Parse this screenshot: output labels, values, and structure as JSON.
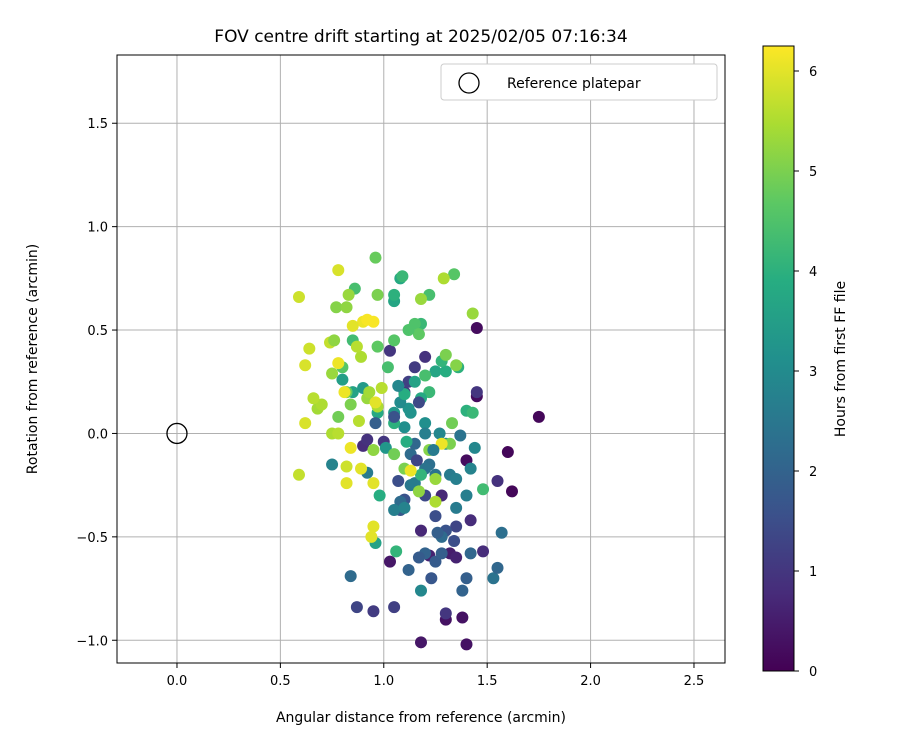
{
  "chart_data": {
    "type": "scatter",
    "title": "FOV centre drift starting at 2025/02/05 07:16:34",
    "xlabel": "Angular distance from reference (arcmin)",
    "ylabel": "Rotation from reference (arcmin)",
    "xlim": [
      -0.29,
      2.65
    ],
    "ylim": [
      -1.11,
      1.83
    ],
    "xticks": [
      0.0,
      0.5,
      1.0,
      1.5,
      2.0,
      2.5
    ],
    "xtick_labels": [
      "0.0",
      "0.5",
      "1.0",
      "1.5",
      "2.0",
      "2.5"
    ],
    "yticks": [
      -1.0,
      -0.5,
      0.0,
      0.5,
      1.0,
      1.5
    ],
    "ytick_labels": [
      "−1.0",
      "−0.5",
      "0.0",
      "0.5",
      "1.0",
      "1.5"
    ],
    "grid": true,
    "legend": {
      "position": "top-right",
      "entries": [
        {
          "label": "Reference platepar",
          "marker": "open-circle"
        }
      ]
    },
    "reference_point": {
      "x": 0.0,
      "y": 0.0,
      "label": "Reference platepar"
    },
    "colorbar": {
      "label": "Hours from first FF file",
      "colormap": "viridis",
      "range": [
        0,
        6.25
      ],
      "ticks": [
        0,
        1,
        2,
        3,
        4,
        5,
        6
      ],
      "tick_labels": [
        "0",
        "1",
        "2",
        "3",
        "4",
        "5",
        "6"
      ]
    },
    "series": [
      {
        "c_unit": "hours",
        "points": [
          {
            "x": 1.75,
            "y": 0.08,
            "c": 0.1
          },
          {
            "x": 1.62,
            "y": -0.28,
            "c": 0.1
          },
          {
            "x": 1.6,
            "y": -0.09,
            "c": 0.1
          },
          {
            "x": 1.45,
            "y": 0.51,
            "c": 0.2
          },
          {
            "x": 1.45,
            "y": 0.18,
            "c": 0.2
          },
          {
            "x": 1.4,
            "y": -0.13,
            "c": 0.2
          },
          {
            "x": 1.38,
            "y": -0.89,
            "c": 0.3
          },
          {
            "x": 1.4,
            "y": -1.02,
            "c": 0.3
          },
          {
            "x": 1.3,
            "y": -0.9,
            "c": 0.3
          },
          {
            "x": 1.18,
            "y": -1.01,
            "c": 0.4
          },
          {
            "x": 1.03,
            "y": -0.62,
            "c": 0.4
          },
          {
            "x": 1.32,
            "y": -0.58,
            "c": 0.5
          },
          {
            "x": 1.35,
            "y": -0.6,
            "c": 0.6
          },
          {
            "x": 1.22,
            "y": -0.59,
            "c": 0.6
          },
          {
            "x": 1.18,
            "y": -0.47,
            "c": 0.7
          },
          {
            "x": 1.28,
            "y": -0.3,
            "c": 0.7
          },
          {
            "x": 1.42,
            "y": -0.42,
            "c": 0.8
          },
          {
            "x": 1.48,
            "y": -0.57,
            "c": 0.8
          },
          {
            "x": 1.55,
            "y": -0.23,
            "c": 0.9
          },
          {
            "x": 1.45,
            "y": 0.2,
            "c": 1.0
          },
          {
            "x": 1.3,
            "y": -0.87,
            "c": 1.0
          },
          {
            "x": 0.95,
            "y": -0.86,
            "c": 1.1
          },
          {
            "x": 1.05,
            "y": -0.84,
            "c": 1.2
          },
          {
            "x": 0.87,
            "y": -0.84,
            "c": 1.3
          },
          {
            "x": 1.2,
            "y": 0.37,
            "c": 0.9
          },
          {
            "x": 1.1,
            "y": 0.2,
            "c": 1.0
          },
          {
            "x": 1.12,
            "y": 0.25,
            "c": 1.2
          },
          {
            "x": 1.03,
            "y": 0.4,
            "c": 1.0
          },
          {
            "x": 1.15,
            "y": 0.32,
            "c": 1.1
          },
          {
            "x": 1.0,
            "y": -0.04,
            "c": 1.0
          },
          {
            "x": 0.9,
            "y": -0.06,
            "c": 0.8
          },
          {
            "x": 0.92,
            "y": -0.03,
            "c": 0.9
          },
          {
            "x": 1.25,
            "y": -0.4,
            "c": 1.5
          },
          {
            "x": 1.2,
            "y": -0.3,
            "c": 1.4
          },
          {
            "x": 1.1,
            "y": -0.32,
            "c": 1.6
          },
          {
            "x": 1.08,
            "y": -0.37,
            "c": 1.7
          },
          {
            "x": 1.35,
            "y": -0.45,
            "c": 1.3
          },
          {
            "x": 1.34,
            "y": -0.52,
            "c": 1.5
          },
          {
            "x": 1.3,
            "y": -0.47,
            "c": 1.6
          },
          {
            "x": 1.25,
            "y": -0.62,
            "c": 1.8
          },
          {
            "x": 1.28,
            "y": -0.58,
            "c": 1.9
          },
          {
            "x": 1.2,
            "y": -0.58,
            "c": 2.0
          },
          {
            "x": 1.12,
            "y": -0.66,
            "c": 2.0
          },
          {
            "x": 1.17,
            "y": -0.6,
            "c": 1.8
          },
          {
            "x": 1.23,
            "y": -0.7,
            "c": 1.7
          },
          {
            "x": 1.4,
            "y": -0.7,
            "c": 1.9
          },
          {
            "x": 1.38,
            "y": -0.76,
            "c": 2.0
          },
          {
            "x": 1.53,
            "y": -0.7,
            "c": 2.4
          },
          {
            "x": 1.55,
            "y": -0.65,
            "c": 2.1
          },
          {
            "x": 1.57,
            "y": -0.48,
            "c": 2.3
          },
          {
            "x": 1.42,
            "y": -0.58,
            "c": 2.1
          },
          {
            "x": 0.84,
            "y": -0.69,
            "c": 2.2
          },
          {
            "x": 1.18,
            "y": -0.76,
            "c": 2.9
          },
          {
            "x": 1.08,
            "y": -0.33,
            "c": 2.2
          },
          {
            "x": 1.13,
            "y": -0.1,
            "c": 2.2
          },
          {
            "x": 1.15,
            "y": -0.05,
            "c": 2.1
          },
          {
            "x": 1.22,
            "y": -0.15,
            "c": 2.3
          },
          {
            "x": 1.25,
            "y": -0.2,
            "c": 2.4
          },
          {
            "x": 1.32,
            "y": -0.2,
            "c": 2.6
          },
          {
            "x": 1.4,
            "y": -0.3,
            "c": 2.7
          },
          {
            "x": 1.35,
            "y": -0.36,
            "c": 2.6
          },
          {
            "x": 1.42,
            "y": -0.17,
            "c": 2.8
          },
          {
            "x": 1.44,
            "y": -0.07,
            "c": 2.9
          },
          {
            "x": 1.3,
            "y": -0.05,
            "c": 3.0
          },
          {
            "x": 1.27,
            "y": 0.0,
            "c": 2.9
          },
          {
            "x": 1.2,
            "y": 0.05,
            "c": 3.1
          },
          {
            "x": 1.12,
            "y": 0.12,
            "c": 3.2
          },
          {
            "x": 1.05,
            "y": 0.1,
            "c": 3.3
          },
          {
            "x": 1.08,
            "y": 0.15,
            "c": 3.0
          },
          {
            "x": 1.1,
            "y": 0.03,
            "c": 3.1
          },
          {
            "x": 1.13,
            "y": -0.25,
            "c": 2.5
          },
          {
            "x": 1.05,
            "y": -0.37,
            "c": 2.7
          },
          {
            "x": 1.1,
            "y": -0.36,
            "c": 2.8
          },
          {
            "x": 1.2,
            "y": -0.17,
            "c": 2.4
          },
          {
            "x": 1.15,
            "y": -0.24,
            "c": 2.6
          },
          {
            "x": 0.75,
            "y": -0.15,
            "c": 2.8
          },
          {
            "x": 0.92,
            "y": -0.19,
            "c": 2.6
          },
          {
            "x": 1.01,
            "y": -0.07,
            "c": 3.3
          },
          {
            "x": 0.8,
            "y": 0.26,
            "c": 3.5
          },
          {
            "x": 0.85,
            "y": 0.2,
            "c": 3.6
          },
          {
            "x": 0.97,
            "y": 0.1,
            "c": 3.8
          },
          {
            "x": 0.9,
            "y": 0.22,
            "c": 3.4
          },
          {
            "x": 1.15,
            "y": 0.25,
            "c": 3.6
          },
          {
            "x": 1.25,
            "y": 0.3,
            "c": 3.7
          },
          {
            "x": 1.3,
            "y": 0.3,
            "c": 3.9
          },
          {
            "x": 1.36,
            "y": 0.32,
            "c": 4.0
          },
          {
            "x": 1.28,
            "y": 0.35,
            "c": 4.1
          },
          {
            "x": 1.4,
            "y": 0.11,
            "c": 4.0
          },
          {
            "x": 1.43,
            "y": 0.1,
            "c": 4.2
          },
          {
            "x": 1.48,
            "y": -0.27,
            "c": 4.3
          },
          {
            "x": 1.22,
            "y": 0.2,
            "c": 4.2
          },
          {
            "x": 1.2,
            "y": 0.28,
            "c": 4.4
          },
          {
            "x": 1.18,
            "y": 0.17,
            "c": 3.8
          },
          {
            "x": 1.1,
            "y": 0.19,
            "c": 3.9
          },
          {
            "x": 1.05,
            "y": 0.05,
            "c": 4.0
          },
          {
            "x": 1.11,
            "y": -0.04,
            "c": 3.9
          },
          {
            "x": 1.18,
            "y": -0.2,
            "c": 4.1
          },
          {
            "x": 0.96,
            "y": -0.53,
            "c": 3.6
          },
          {
            "x": 0.98,
            "y": -0.3,
            "c": 3.9
          },
          {
            "x": 1.06,
            "y": -0.57,
            "c": 4.1
          },
          {
            "x": 1.08,
            "y": 0.75,
            "c": 3.8
          },
          {
            "x": 1.09,
            "y": 0.76,
            "c": 4.2
          },
          {
            "x": 1.05,
            "y": 0.64,
            "c": 3.7
          },
          {
            "x": 1.05,
            "y": 0.67,
            "c": 4.0
          },
          {
            "x": 0.86,
            "y": 0.7,
            "c": 4.4
          },
          {
            "x": 1.22,
            "y": 0.67,
            "c": 4.4
          },
          {
            "x": 1.34,
            "y": 0.77,
            "c": 4.6
          },
          {
            "x": 1.18,
            "y": 0.53,
            "c": 4.2
          },
          {
            "x": 1.15,
            "y": 0.53,
            "c": 4.5
          },
          {
            "x": 1.17,
            "y": 0.48,
            "c": 4.7
          },
          {
            "x": 1.12,
            "y": 0.5,
            "c": 4.5
          },
          {
            "x": 1.05,
            "y": 0.45,
            "c": 4.6
          },
          {
            "x": 0.97,
            "y": 0.42,
            "c": 4.7
          },
          {
            "x": 0.85,
            "y": 0.45,
            "c": 4.3
          },
          {
            "x": 0.8,
            "y": 0.32,
            "c": 4.6
          },
          {
            "x": 0.82,
            "y": 0.2,
            "c": 4.8
          },
          {
            "x": 0.78,
            "y": 0.08,
            "c": 4.9
          },
          {
            "x": 0.84,
            "y": 0.14,
            "c": 5.0
          },
          {
            "x": 0.96,
            "y": 0.85,
            "c": 4.8
          },
          {
            "x": 0.97,
            "y": 0.67,
            "c": 5.0
          },
          {
            "x": 0.77,
            "y": 0.61,
            "c": 5.1
          },
          {
            "x": 0.82,
            "y": 0.61,
            "c": 5.2
          },
          {
            "x": 0.83,
            "y": 0.67,
            "c": 5.3
          },
          {
            "x": 1.18,
            "y": 0.65,
            "c": 5.3
          },
          {
            "x": 1.29,
            "y": 0.75,
            "c": 5.5
          },
          {
            "x": 1.43,
            "y": 0.58,
            "c": 5.3
          },
          {
            "x": 1.3,
            "y": 0.38,
            "c": 5.0
          },
          {
            "x": 1.35,
            "y": 0.33,
            "c": 5.1
          },
          {
            "x": 1.33,
            "y": 0.05,
            "c": 4.9
          },
          {
            "x": 1.32,
            "y": -0.05,
            "c": 5.0
          },
          {
            "x": 1.22,
            "y": -0.08,
            "c": 5.1
          },
          {
            "x": 1.25,
            "y": -0.22,
            "c": 5.3
          },
          {
            "x": 1.17,
            "y": -0.28,
            "c": 5.2
          },
          {
            "x": 1.25,
            "y": -0.33,
            "c": 5.5
          },
          {
            "x": 1.05,
            "y": -0.1,
            "c": 4.9
          },
          {
            "x": 1.1,
            "y": -0.17,
            "c": 5.0
          },
          {
            "x": 0.95,
            "y": -0.08,
            "c": 5.2
          },
          {
            "x": 0.92,
            "y": 0.17,
            "c": 5.3
          },
          {
            "x": 0.93,
            "y": 0.2,
            "c": 5.4
          },
          {
            "x": 0.97,
            "y": 0.13,
            "c": 5.5
          },
          {
            "x": 0.99,
            "y": 0.22,
            "c": 5.6
          },
          {
            "x": 0.89,
            "y": 0.37,
            "c": 5.5
          },
          {
            "x": 0.87,
            "y": 0.42,
            "c": 5.6
          },
          {
            "x": 0.74,
            "y": 0.44,
            "c": 5.7
          },
          {
            "x": 0.68,
            "y": 0.12,
            "c": 5.4
          },
          {
            "x": 0.7,
            "y": 0.14,
            "c": 5.5
          },
          {
            "x": 0.66,
            "y": 0.17,
            "c": 5.6
          },
          {
            "x": 0.64,
            "y": 0.41,
            "c": 5.8
          },
          {
            "x": 0.62,
            "y": 0.33,
            "c": 5.9
          },
          {
            "x": 0.59,
            "y": 0.66,
            "c": 5.8
          },
          {
            "x": 0.59,
            "y": -0.2,
            "c": 5.7
          },
          {
            "x": 0.75,
            "y": 0.0,
            "c": 5.5
          },
          {
            "x": 0.78,
            "y": 0.0,
            "c": 5.6
          },
          {
            "x": 0.78,
            "y": 0.79,
            "c": 5.9
          },
          {
            "x": 0.62,
            "y": 0.05,
            "c": 5.9
          },
          {
            "x": 0.82,
            "y": -0.16,
            "c": 5.8
          },
          {
            "x": 0.82,
            "y": -0.24,
            "c": 6.0
          },
          {
            "x": 0.95,
            "y": -0.24,
            "c": 6.0
          },
          {
            "x": 0.95,
            "y": -0.45,
            "c": 6.0
          },
          {
            "x": 0.94,
            "y": -0.5,
            "c": 6.0
          },
          {
            "x": 0.89,
            "y": -0.17,
            "c": 6.0
          },
          {
            "x": 0.84,
            "y": -0.07,
            "c": 6.1
          },
          {
            "x": 0.81,
            "y": 0.2,
            "c": 6.1
          },
          {
            "x": 0.78,
            "y": 0.34,
            "c": 6.1
          },
          {
            "x": 0.9,
            "y": 0.54,
            "c": 6.1
          },
          {
            "x": 0.92,
            "y": 0.55,
            "c": 6.2
          },
          {
            "x": 0.95,
            "y": 0.54,
            "c": 6.2
          },
          {
            "x": 0.85,
            "y": 0.52,
            "c": 6.0
          },
          {
            "x": 0.96,
            "y": 0.15,
            "c": 6.0
          },
          {
            "x": 1.13,
            "y": -0.18,
            "c": 6.1
          },
          {
            "x": 1.28,
            "y": -0.05,
            "c": 6.1
          },
          {
            "x": 0.75,
            "y": 0.29,
            "c": 5.3
          },
          {
            "x": 0.76,
            "y": 0.45,
            "c": 5.2
          },
          {
            "x": 0.88,
            "y": 0.06,
            "c": 5.6
          },
          {
            "x": 1.02,
            "y": 0.32,
            "c": 4.4
          },
          {
            "x": 1.07,
            "y": 0.23,
            "c": 2.9
          },
          {
            "x": 1.13,
            "y": 0.1,
            "c": 3.2
          },
          {
            "x": 1.2,
            "y": 0.0,
            "c": 2.7
          },
          {
            "x": 1.24,
            "y": -0.08,
            "c": 2.6
          },
          {
            "x": 1.37,
            "y": -0.01,
            "c": 2.4
          },
          {
            "x": 1.35,
            "y": -0.22,
            "c": 2.7
          },
          {
            "x": 1.28,
            "y": -0.5,
            "c": 2.2
          },
          {
            "x": 1.26,
            "y": -0.48,
            "c": 1.9
          },
          {
            "x": 1.05,
            "y": 0.08,
            "c": 1.6
          },
          {
            "x": 1.07,
            "y": -0.23,
            "c": 1.5
          },
          {
            "x": 1.16,
            "y": -0.13,
            "c": 1.3
          },
          {
            "x": 0.96,
            "y": 0.05,
            "c": 1.9
          },
          {
            "x": 1.17,
            "y": 0.15,
            "c": 1.4
          }
        ]
      }
    ]
  }
}
